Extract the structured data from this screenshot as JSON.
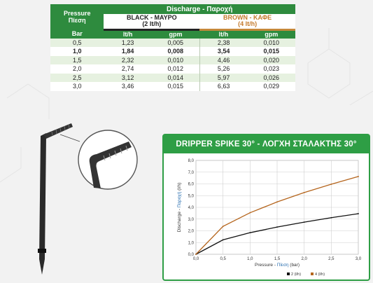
{
  "table": {
    "pressure_header": "Pressure",
    "pressure_header_gr": "Πίεση",
    "discharge_header": "Discharge - Παροχή",
    "black_label": "BLACK - ΜΑΥΡΟ",
    "black_rate": "(2 lt/h)",
    "brown_label": "BROWN - ΚΑΦΕ",
    "brown_rate": "(4 lt/h)",
    "col_bar": "Bar",
    "col_lth_1": "lt/h",
    "col_gpm_1": "gpm",
    "col_lth_2": "lt/h",
    "col_gpm_2": "gpm",
    "rows": [
      [
        "0,5",
        "1,23",
        "0,005",
        "2,38",
        "0,010"
      ],
      [
        "1,0",
        "1,84",
        "0,008",
        "3,54",
        "0,015"
      ],
      [
        "1,5",
        "2,32",
        "0,010",
        "4,46",
        "0,020"
      ],
      [
        "2,0",
        "2,74",
        "0,012",
        "5,26",
        "0,023"
      ],
      [
        "2,5",
        "3,12",
        "0,014",
        "5,97",
        "0,026"
      ],
      [
        "3,0",
        "3,46",
        "0,015",
        "6,63",
        "0,029"
      ]
    ]
  },
  "chart_data": {
    "type": "line",
    "title": "DRIPPER SPIKE 30° - ΛΟΓΧΗ ΣΤΑΛΑΚΤΗΣ 30°",
    "xlabel_pre": "Pressure - ",
    "xlabel_gr": "Πίεση",
    "xlabel_post": " (bar)",
    "ylabel_pre": "Discharge - ",
    "ylabel_gr": "Παροχή",
    "ylabel_post": " (l/h)",
    "x": [
      0,
      0.5,
      1.0,
      1.5,
      2.0,
      2.5,
      3.0
    ],
    "xlim": [
      0,
      3
    ],
    "ylim": [
      0,
      8
    ],
    "xticks": [
      "0,0",
      "0,5",
      "1,0",
      "1,5",
      "2,0",
      "2,5",
      "3,0"
    ],
    "yticks": [
      "0,0",
      "1,0",
      "2,0",
      "3,0",
      "4,0",
      "5,0",
      "6,0",
      "7,0",
      "8,0"
    ],
    "grid": true,
    "legend_position": "bottom-right",
    "series": [
      {
        "name": "2 (l/h)",
        "color": "#111111",
        "values": [
          0,
          1.23,
          1.84,
          2.32,
          2.74,
          3.12,
          3.46
        ]
      },
      {
        "name": "4 (l/h)",
        "color": "#b5651d",
        "values": [
          0,
          2.38,
          3.54,
          4.46,
          5.26,
          5.97,
          6.63
        ]
      }
    ]
  },
  "colors": {
    "header_green": "#2e8b3e",
    "panel_green": "#2e9e45",
    "row_light": "#e6f1e0",
    "brown": "#c47a2c",
    "axis_blue": "#2a6fb0"
  }
}
